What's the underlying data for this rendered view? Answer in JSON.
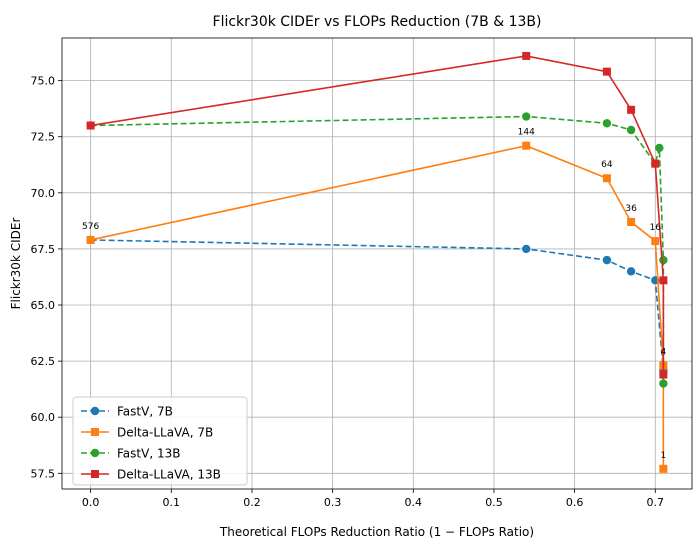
{
  "chart_data": {
    "type": "line",
    "title": "Flickr30k CIDEr vs FLOPs Reduction (7B & 13B)",
    "xlabel": "Theoretical FLOPs Reduction Ratio (1 − FLOPs Ratio)",
    "ylabel": "Flickr30k CIDEr",
    "xlim": [
      -0.0355,
      0.7455
    ],
    "ylim": [
      56.8,
      76.9
    ],
    "xticks": [
      0.0,
      0.1,
      0.2,
      0.3,
      0.4,
      0.5,
      0.6,
      0.7
    ],
    "yticks": [
      57.5,
      60.0,
      62.5,
      65.0,
      67.5,
      70.0,
      72.5,
      75.0
    ],
    "xtick_labels": [
      "0.0",
      "0.1",
      "0.2",
      "0.3",
      "0.4",
      "0.5",
      "0.6",
      "0.7"
    ],
    "ytick_labels": [
      "57.5",
      "60.0",
      "62.5",
      "65.0",
      "67.5",
      "70.0",
      "72.5",
      "75.0"
    ],
    "grid": true,
    "legend_position": "lower-left",
    "series": [
      {
        "name": "FastV, 7B",
        "color": "#1f77b4",
        "line_style": "dashed",
        "marker": "circle",
        "x": [
          0.0,
          0.54,
          0.64,
          0.67,
          0.7,
          0.71
        ],
        "y": [
          67.9,
          67.5,
          67.0,
          66.5,
          66.1,
          62.1
        ]
      },
      {
        "name": "Delta-LLaVA, 7B",
        "color": "#ff7f0e",
        "line_style": "solid",
        "marker": "square",
        "x": [
          0.0,
          0.54,
          0.64,
          0.67,
          0.7,
          0.71,
          0.71
        ],
        "y": [
          67.9,
          72.1,
          70.65,
          68.7,
          67.85,
          62.3,
          57.7
        ]
      },
      {
        "name": "FastV, 13B",
        "color": "#2ca02c",
        "line_style": "dashed",
        "marker": "circle",
        "x": [
          0.0,
          0.54,
          0.64,
          0.67,
          0.7,
          0.705,
          0.71,
          0.71
        ],
        "y": [
          73.0,
          73.4,
          73.1,
          72.8,
          71.3,
          72.0,
          67.0,
          61.5
        ]
      },
      {
        "name": "Delta-LLaVA, 13B",
        "color": "#d62728",
        "line_style": "solid",
        "marker": "square",
        "x": [
          0.0,
          0.54,
          0.64,
          0.67,
          0.7,
          0.71,
          0.71
        ],
        "y": [
          73.0,
          76.1,
          75.4,
          73.7,
          71.3,
          66.1,
          61.9
        ]
      }
    ],
    "annotations": [
      {
        "text": "576",
        "x": 0.0,
        "y": 67.9
      },
      {
        "text": "144",
        "x": 0.54,
        "y": 72.1
      },
      {
        "text": "64",
        "x": 0.64,
        "y": 70.65
      },
      {
        "text": "36",
        "x": 0.67,
        "y": 68.7
      },
      {
        "text": "16",
        "x": 0.7,
        "y": 67.85
      },
      {
        "text": "4",
        "x": 0.71,
        "y": 62.3
      },
      {
        "text": "1",
        "x": 0.71,
        "y": 57.7
      }
    ]
  }
}
